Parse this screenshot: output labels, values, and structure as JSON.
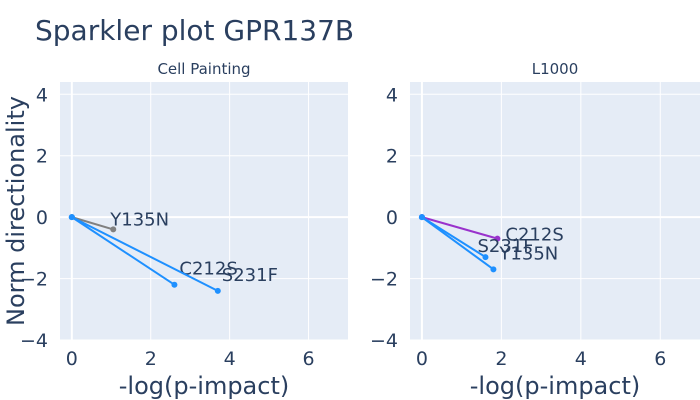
{
  "title": "Sparkler plot GPR137B",
  "ylabel": "Norm directionality",
  "chart_data": [
    {
      "type": "line",
      "subtitle": "Cell Painting",
      "xlabel": "-log(p-impact)",
      "xlim": [
        -0.3,
        7
      ],
      "ylim": [
        -4,
        4.4
      ],
      "xticks": [
        0,
        2,
        4,
        6
      ],
      "yticks": [
        -4,
        -2,
        0,
        2,
        4
      ],
      "grid": true,
      "series": [
        {
          "name": "Y135N",
          "color": "#808080",
          "x": [
            0,
            1.05
          ],
          "y": [
            0,
            -0.4
          ]
        },
        {
          "name": "C212S",
          "color": "#1e90ff",
          "x": [
            0,
            2.6
          ],
          "y": [
            0,
            -2.2
          ]
        },
        {
          "name": "S231F",
          "color": "#1e90ff",
          "x": [
            0,
            3.7
          ],
          "y": [
            0,
            -2.4
          ]
        }
      ]
    },
    {
      "type": "line",
      "subtitle": "L1000",
      "xlabel": "-log(p-impact)",
      "xlim": [
        -0.3,
        7
      ],
      "ylim": [
        -4,
        4.4
      ],
      "xticks": [
        0,
        2,
        4,
        6
      ],
      "yticks": [
        -4,
        -2,
        0,
        2,
        4
      ],
      "grid": true,
      "series": [
        {
          "name": "C212S",
          "color": "#9932cc",
          "x": [
            0,
            1.9
          ],
          "y": [
            0,
            -0.7
          ]
        },
        {
          "name": "S231F",
          "color": "#1e90ff",
          "x": [
            0,
            1.6
          ],
          "y": [
            0,
            -1.3
          ]
        },
        {
          "name": "Y135N",
          "color": "#1e90ff",
          "x": [
            0,
            1.8
          ],
          "y": [
            0,
            -1.7
          ]
        }
      ]
    }
  ]
}
